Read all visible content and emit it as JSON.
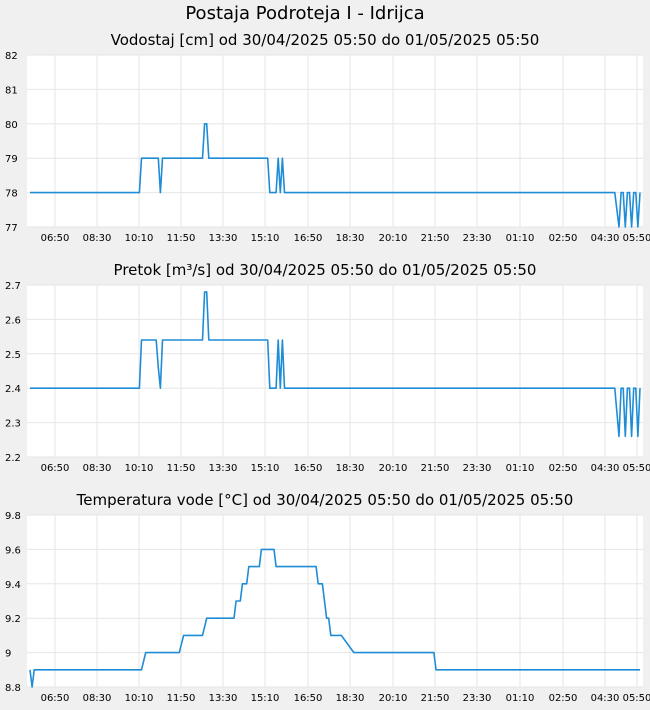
{
  "title": "Postaja Podroteja I - Idrijca",
  "colors": {
    "line": "#1f8dd6",
    "grid": "#e6e6e6",
    "plot_bg": "#ffffff",
    "page_bg": "#f0f0f0"
  },
  "x_ticks": [
    "06:50",
    "08:30",
    "10:10",
    "11:50",
    "13:30",
    "15:10",
    "16:50",
    "18:30",
    "20:10",
    "21:50",
    "23:30",
    "01:10",
    "02:50",
    "04:30",
    "05:50"
  ],
  "chart_data": [
    {
      "type": "line",
      "title": "Vodostaj [cm] od 30/04/2025 05:50 do 01/05/2025 05:50",
      "y_ticks": [
        "82",
        "81",
        "80",
        "79",
        "78",
        "77"
      ],
      "ylim": [
        77,
        82
      ],
      "xlim_minutes": [
        0,
        1450
      ],
      "grid": true,
      "series": [
        {
          "x": [
            0,
            260,
            265,
            305,
            310,
            315,
            320,
            410,
            415,
            420,
            425,
            430,
            565,
            570,
            585,
            590,
            595,
            600,
            605,
            610,
            615,
            1390,
            1400,
            1405,
            1410,
            1415,
            1420,
            1425,
            1430,
            1435,
            1440,
            1445,
            1450
          ],
          "values": [
            78,
            78,
            79,
            79,
            78,
            79,
            79,
            79,
            80,
            80,
            79,
            79,
            79,
            78,
            78,
            79,
            78,
            79,
            78,
            78,
            78,
            78,
            77,
            78,
            78,
            77,
            78,
            78,
            77,
            78,
            78,
            77,
            78
          ]
        }
      ]
    },
    {
      "type": "line",
      "title": "Pretok [m³/s] od 30/04/2025 05:50 do 01/05/2025 05:50",
      "y_ticks": [
        "2.7",
        "2.6",
        "2.5",
        "2.4",
        "2.3",
        "2.2"
      ],
      "ylim": [
        2.2,
        2.7
      ],
      "xlim_minutes": [
        0,
        1450
      ],
      "grid": true,
      "series": [
        {
          "x": [
            0,
            260,
            265,
            300,
            305,
            310,
            315,
            320,
            410,
            415,
            420,
            425,
            430,
            565,
            570,
            585,
            590,
            595,
            600,
            605,
            610,
            615,
            1390,
            1400,
            1405,
            1410,
            1415,
            1420,
            1425,
            1430,
            1435,
            1440,
            1445,
            1450
          ],
          "values": [
            2.4,
            2.4,
            2.54,
            2.54,
            2.46,
            2.4,
            2.54,
            2.54,
            2.54,
            2.68,
            2.68,
            2.54,
            2.54,
            2.54,
            2.4,
            2.4,
            2.54,
            2.4,
            2.54,
            2.4,
            2.4,
            2.4,
            2.4,
            2.26,
            2.4,
            2.4,
            2.26,
            2.4,
            2.4,
            2.26,
            2.4,
            2.4,
            2.26,
            2.4
          ]
        }
      ]
    },
    {
      "type": "line",
      "title": "Temperatura vode [°C] od 30/04/2025 05:50 do 01/05/2025 05:50",
      "y_ticks": [
        "9.8",
        "9.6",
        "9.4",
        "9.2",
        "9",
        "8.8"
      ],
      "ylim": [
        8.8,
        9.8
      ],
      "xlim_minutes": [
        0,
        1450
      ],
      "grid": true,
      "series": [
        {
          "x": [
            0,
            5,
            10,
            265,
            275,
            355,
            365,
            410,
            420,
            485,
            490,
            500,
            505,
            515,
            520,
            530,
            545,
            550,
            580,
            585,
            595,
            610,
            620,
            680,
            685,
            695,
            700,
            705,
            710,
            715,
            720,
            735,
            740,
            770,
            780,
            960,
            965,
            970,
            1450
          ],
          "values": [
            8.9,
            8.8,
            8.9,
            8.9,
            9.0,
            9.0,
            9.1,
            9.1,
            9.2,
            9.2,
            9.3,
            9.3,
            9.4,
            9.4,
            9.5,
            9.5,
            9.5,
            9.6,
            9.6,
            9.5,
            9.5,
            9.5,
            9.5,
            9.5,
            9.4,
            9.4,
            9.3,
            9.2,
            9.2,
            9.1,
            9.1,
            9.1,
            9.1,
            9.0,
            9.0,
            9.0,
            8.9,
            8.9,
            8.9
          ]
        }
      ]
    }
  ]
}
